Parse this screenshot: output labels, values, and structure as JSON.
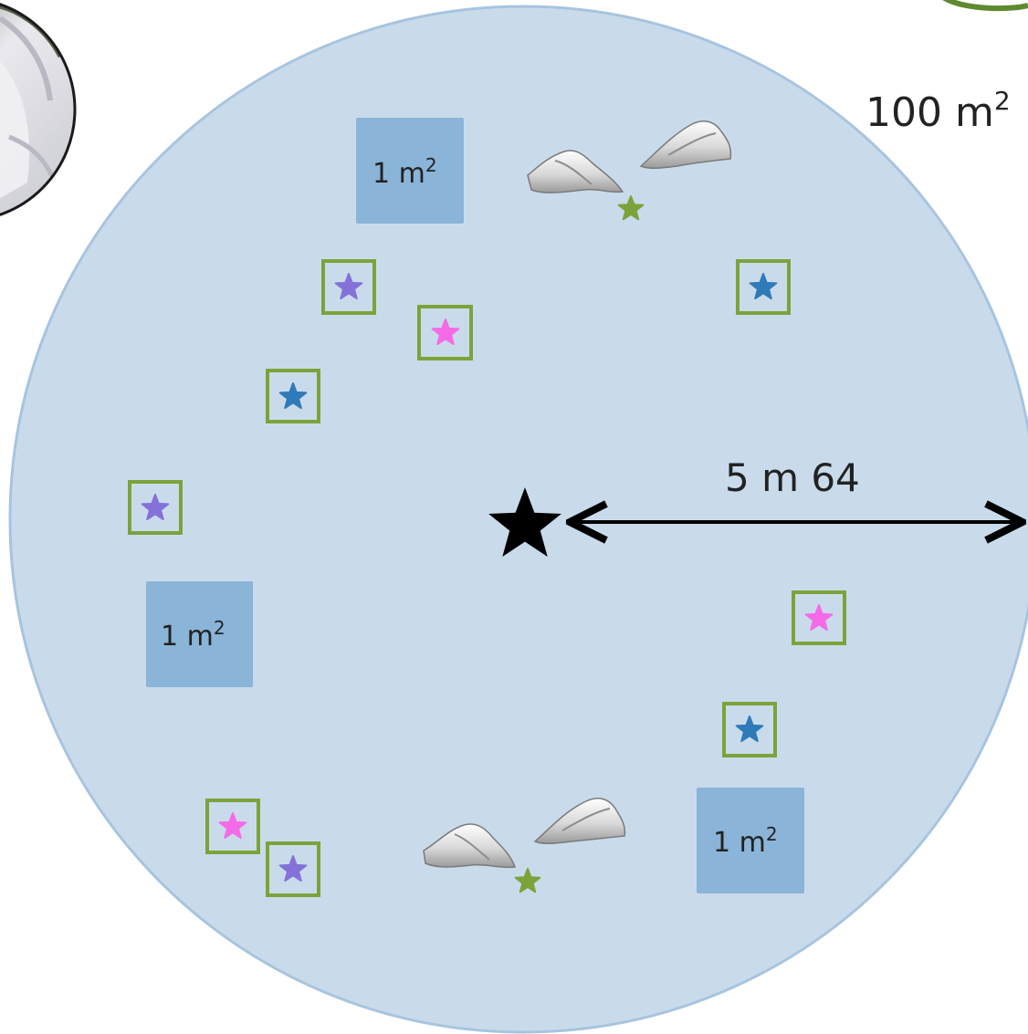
{
  "colors": {
    "plot_fill": "#c9dbeb",
    "plot_stroke": "#a7c4df",
    "quadrat_fill": "#8ab4d8",
    "subplot_stroke": "#7ba33a",
    "star_purple": "#8472d9",
    "star_pink": "#f56ae6",
    "star_blue": "#2f7ab9",
    "star_green": "#7ba33a",
    "center_star": "#000000",
    "ring_green": "#5f8a30"
  },
  "plot": {
    "area_base": "100 m",
    "area_sup": "2"
  },
  "radius": {
    "label": "5 m 64"
  },
  "quadrats": [
    {
      "base": "1 m",
      "sup": "2"
    },
    {
      "base": "1 m",
      "sup": "2"
    },
    {
      "base": "1 m",
      "sup": "2"
    }
  ],
  "subplots": [
    {
      "star": "purple"
    },
    {
      "star": "pink"
    },
    {
      "star": "blue"
    },
    {
      "star": "purple"
    },
    {
      "star": "blue"
    },
    {
      "star": "pink"
    },
    {
      "star": "blue"
    },
    {
      "star": "pink"
    },
    {
      "star": "purple"
    }
  ],
  "icons": {
    "photo": "person-photo-icon",
    "rock": "rock-icon",
    "center": "center-star-icon"
  }
}
